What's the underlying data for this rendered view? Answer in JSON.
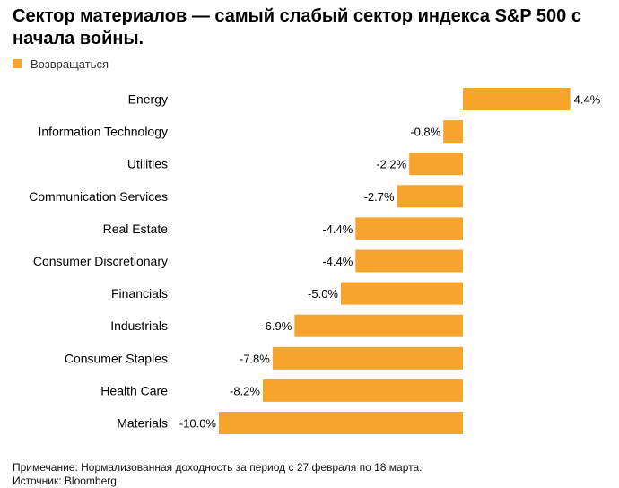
{
  "title": "Сектор материалов — самый слабый сектор индекса S&P 500 с начала войны.",
  "legend": {
    "label": "Возвращаться",
    "color": "#f7a42c"
  },
  "footer": {
    "note": "Примечание: Нормализованная доходность за период с 27 февраля по 18 марта.",
    "source": "Источник: Bloomberg"
  },
  "chart_data": {
    "type": "bar",
    "orientation": "horizontal",
    "title": "Сектор материалов — самый слабый сектор индекса S&P 500 с начала войны.",
    "categories": [
      "Energy",
      "Information Technology",
      "Utilities",
      "Communication Services",
      "Real Estate",
      "Consumer Discretionary",
      "Financials",
      "Industrials",
      "Consumer Staples",
      "Health Care",
      "Materials"
    ],
    "series": [
      {
        "name": "Возвращаться",
        "values": [
          4.4,
          -0.8,
          -2.2,
          -2.7,
          -4.4,
          -4.4,
          -5.0,
          -6.9,
          -7.8,
          -8.2,
          -10.0
        ],
        "labels": [
          "4.4%",
          "-0.8%",
          "-2.2%",
          "-2.7%",
          "-4.4%",
          "-4.4%",
          "-5.0%",
          "-6.9%",
          "-7.8%",
          "-8.2%",
          "-10.0%"
        ]
      }
    ],
    "xlim": [
      -10.0,
      4.4
    ],
    "grid": false,
    "legend_position": "top-left",
    "bar_color": "#f7a42c"
  }
}
